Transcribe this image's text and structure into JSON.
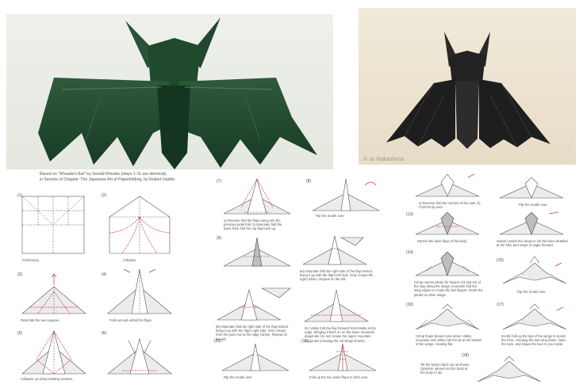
{
  "header": {
    "line1": "Based on \"Rhoads's Bat\" by Gerald Rhoads (steps 1-11 are identical),",
    "line2": "in Secrets of Origami: The Japanese Art of Paperfolding, by Robert Harbin."
  },
  "photos": {
    "right_watermark": "© Jo Nakashima"
  },
  "steps": [
    {
      "num": "(1)",
      "caption": "Preliminary"
    },
    {
      "num": "(2)",
      "caption": "Collapse"
    },
    {
      "num": "(3)",
      "caption": "Petal fold the two squares."
    },
    {
      "num": "(4)",
      "caption": "Fold out and unfold the flaps"
    },
    {
      "num": "(5)",
      "caption": "Collapse up along existing creases..."
    },
    {
      "num": "(6)",
      "caption": ""
    },
    {
      "num": "(7)",
      "caption": "a) Reverse fold the flaps along into the previous petal fold. b) Mountain fold the back, then fold the top flap back up."
    },
    {
      "num": "(8)",
      "caption": "Flip the model over."
    },
    {
      "num": "(9)",
      "caption": ""
    },
    {
      "num": "",
      "caption": "9a) Mountain fold the right side of the flap behind, fixing it up with the flap's left side. Only crease the right (white). Repeat on the left."
    },
    {
      "num": "",
      "caption": "9b) Mountain fold the right side of the flap behind, fixing it up with the flap's right side. Only crease from the point out to the edge (white). Repeat on the left."
    },
    {
      "num": "",
      "caption": "9c) Valley fold the flap forward horizontally at the edge, bringing it flush on on the lower mountain diagonals. Do not crease the upper mountain diagonals (creating the cut wings shown)."
    },
    {
      "num": "(10)",
      "caption": "Flip the model over."
    },
    {
      "num": "(11)",
      "caption": "Fold up the two lower flaps to form ears."
    },
    {
      "num": "",
      "caption": "a) Reverse fold the corners of the ears. b) Fold the tip over."
    },
    {
      "num": "",
      "caption": "Flip the model over."
    },
    {
      "num": "(13)",
      "caption": "Narrow the back flaps of the body."
    },
    {
      "num": "",
      "caption": "Swivel-crease the wings to set the bone detailed at the fold, and wings at angle forward."
    },
    {
      "num": "(14)",
      "caption": "Crimp narrow pleats for fingers 1/3 and 2/3 of the way along the wings; mountain fold the wing edges to create the bat fingers. Finish the pleats on other wings."
    },
    {
      "num": "(15)",
      "caption": "Flip the model over."
    },
    {
      "num": "(16)",
      "caption": "Crimp finger pleats more times. Valley mountain and valley fold the tip at the bottom of the wings, creating flat."
    },
    {
      "num": "(17)",
      "caption": "Gently fold up the tips of the wings to match the front, crimping the last wing down. Open the ears, and shape the face to your taste."
    },
    {
      "num": "(18)",
      "caption": "Tilt the body's back out as shown. Optional: spread out the back at the body to 3D."
    }
  ]
}
